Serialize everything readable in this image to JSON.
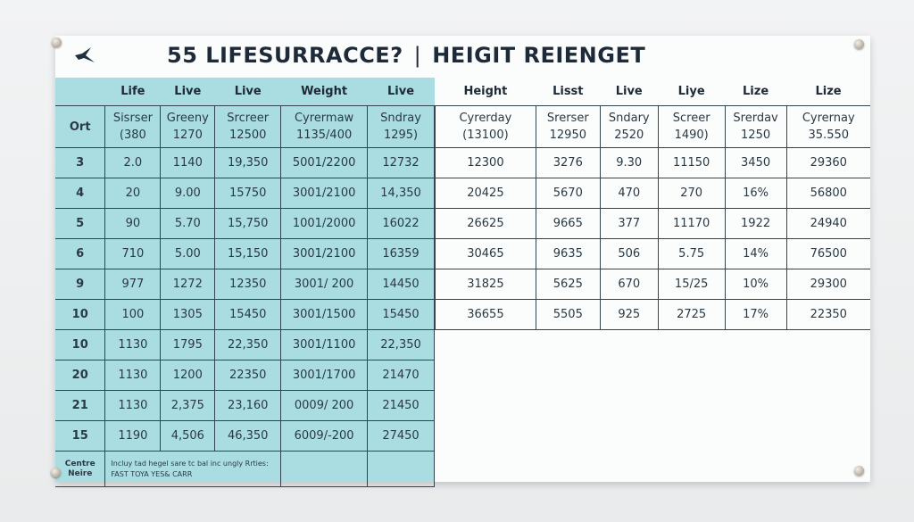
{
  "title": {
    "left": "55 LIFESURRACCE?",
    "separator": "|",
    "right": "HEIGIT REIENGET"
  },
  "colors": {
    "cyan_panel": "#a9dde2",
    "board": "#fbfcfc",
    "text": "#1e2a36"
  },
  "logo": "bird-icon",
  "left_table": {
    "headers": [
      "",
      "Life",
      "Live",
      "Live",
      "Weight",
      "Live"
    ],
    "subheader": [
      "Ort",
      [
        "Sisrser",
        "(380"
      ],
      [
        "Greeny",
        "1270"
      ],
      [
        "Srcreer",
        "12500"
      ],
      [
        "Cyrermaw",
        "1135/400"
      ],
      [
        "Sndray",
        "1295)"
      ]
    ],
    "rows": [
      [
        "3",
        "2.0",
        "1140",
        "19,350",
        "5001/2200",
        "12732"
      ],
      [
        "4",
        "20",
        "9.00",
        "15750",
        "3001/2100",
        "14,350"
      ],
      [
        "5",
        "90",
        "5.70",
        "15,750",
        "1001/2000",
        "16022"
      ],
      [
        "6",
        "710",
        "5.00",
        "15,150",
        "3001/2100",
        "16359"
      ],
      [
        "9",
        "977",
        "1272",
        "12350",
        "3001/ 200",
        "14450"
      ],
      [
        "10",
        "100",
        "1305",
        "15450",
        "3001/1500",
        "15450"
      ],
      [
        "10",
        "1130",
        "1795",
        "22,350",
        "3001/1100",
        "22,350"
      ],
      [
        "20",
        "1130",
        "1200",
        "22350",
        "3001/1700",
        "21470"
      ],
      [
        "21",
        "1130",
        "2,375",
        "23,160",
        "0009/ 200",
        "21450"
      ],
      [
        "15",
        "1190",
        "4,506",
        "46,350",
        "6009/-200",
        "27450"
      ]
    ],
    "footer": {
      "label": [
        "Centre",
        "Neire"
      ],
      "note": [
        "Incluy tad hegel sare tc bal inc ungly Rrties:",
        "FAST TOYA YES& CARR"
      ]
    }
  },
  "right_table": {
    "headers": [
      "Height",
      "Lisst",
      "Live",
      "Liye",
      "Lize",
      "Lize"
    ],
    "subheader": [
      [
        "Cyrerday",
        "(13100)"
      ],
      [
        "Srerser",
        "12950"
      ],
      [
        "Sndary",
        "2520"
      ],
      [
        "Screer",
        "1490)"
      ],
      [
        "Srerdav",
        "1250"
      ],
      [
        "Cyrernay",
        "35.550"
      ]
    ],
    "rows": [
      [
        "12300",
        "3276",
        "9.30",
        "11150",
        "3450",
        "29360"
      ],
      [
        "20425",
        "5670",
        "470",
        "270",
        "16%",
        "56800"
      ],
      [
        "26625",
        "9665",
        "377",
        "11170",
        "1922",
        "24940"
      ],
      [
        "30465",
        "9635",
        "506",
        "5.75",
        "14%",
        "76500"
      ],
      [
        "31825",
        "5625",
        "670",
        "15/25",
        "10%",
        "29300"
      ],
      [
        "36655",
        "5505",
        "925",
        "2725",
        "17%",
        "22350"
      ]
    ]
  }
}
